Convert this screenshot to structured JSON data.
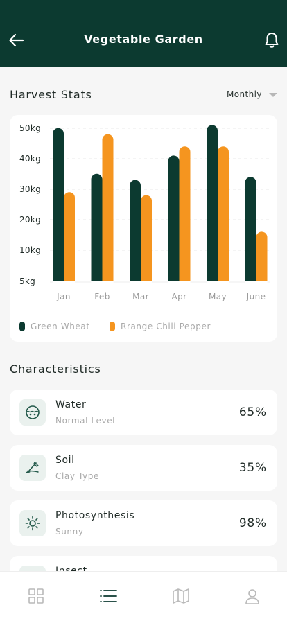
{
  "header": {
    "title": "Vegetable Garden",
    "back_icon": "arrow-left-icon",
    "bell_icon": "bell-icon"
  },
  "harvest": {
    "title": "Harvest Stats",
    "period": "Monthly"
  },
  "chart_data": {
    "type": "bar",
    "title": "",
    "xlabel": "",
    "ylabel": "",
    "categories": [
      "Jan",
      "Feb",
      "Mar",
      "Apr",
      "May",
      "June"
    ],
    "y_ticks": [
      "5kg",
      "10kg",
      "20kg",
      "30kg",
      "40kg",
      "50kg"
    ],
    "ylim": [
      0,
      50
    ],
    "grid": true,
    "legend_position": "bottom-left",
    "series": [
      {
        "name": "Green Wheat",
        "color": "#0c3a30",
        "values": [
          48,
          33,
          31,
          39,
          49,
          32
        ]
      },
      {
        "name": "Rrange Chili Pepper",
        "color": "#f5951f",
        "values": [
          27,
          46,
          26,
          42,
          42,
          14
        ]
      }
    ]
  },
  "characteristics": {
    "title": "Characteristics",
    "items": [
      {
        "name": "Water",
        "sub": "Normal Level",
        "value": "65%",
        "icon": "water-icon"
      },
      {
        "name": "Soil",
        "sub": "Clay Type",
        "value": "35%",
        "icon": "shovel-icon"
      },
      {
        "name": "Photosynthesis",
        "sub": "Sunny",
        "value": "98%",
        "icon": "sun-icon"
      },
      {
        "name": "Insect",
        "sub": "",
        "value": "",
        "icon": "insect-icon"
      }
    ]
  },
  "tabbar": {
    "items": [
      "grid-icon",
      "list-icon",
      "map-icon",
      "user-icon"
    ],
    "active": 1
  }
}
